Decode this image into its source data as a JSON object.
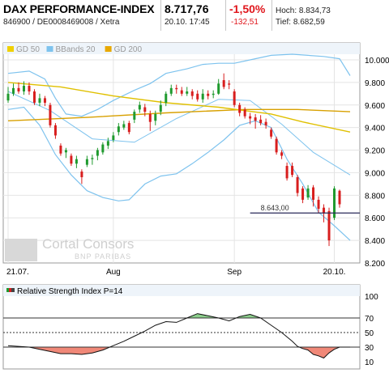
{
  "header": {
    "title": "DAX PERFORMANCE-INDEX",
    "ids": "846900 / DE0008469008 / Xetra",
    "price": "8.717,76",
    "datetime": "20.10. 17:45",
    "change_pct": "-1,50%",
    "change_abs": "-132,51",
    "high_label": "Hoch: 8.834,73",
    "low_label": "Tief: 8.682,59"
  },
  "legend": [
    {
      "label": "GD 50",
      "color": "#f0d000"
    },
    {
      "label": "BBands 20",
      "color": "#7ec3ee"
    },
    {
      "label": "GD 200",
      "color": "#e8a800"
    }
  ],
  "watermark": {
    "brand": "Cortal Consors",
    "sub": "BNP PARIBAS"
  },
  "colors": {
    "up": "#1f9a2e",
    "down": "#d81e1e",
    "bb": "#7ec3ee",
    "gd50": "#e0c000",
    "gd200": "#d8a000",
    "rsi_pos": "#8ccf8c",
    "rsi_neg": "#f08878"
  },
  "chart_data": [
    {
      "type": "line",
      "title": "DAX PERFORMANCE-INDEX",
      "x_ticks": [
        "21.07.",
        "Aug",
        "Sep",
        "20.10."
      ],
      "y_ticks": [
        8200,
        8400,
        8600,
        8800,
        9000,
        9200,
        9400,
        9600,
        9800,
        10000
      ],
      "y_tick_labels": [
        "8.200",
        "8.400",
        "8.600",
        "8.800",
        "9.000",
        "9.200",
        "9.400",
        "9.600",
        "9.800",
        "10.000"
      ],
      "ylim": [
        8200,
        10050
      ],
      "x_count": 66,
      "annotation": {
        "label": "8.643,00",
        "value": 8643
      },
      "candles": [
        {
          "x": 0,
          "o": 9640,
          "c": 9700,
          "h": 9760,
          "l": 9620
        },
        {
          "x": 1,
          "o": 9700,
          "c": 9750,
          "h": 9790,
          "l": 9680
        },
        {
          "x": 2,
          "o": 9750,
          "c": 9720,
          "h": 9800,
          "l": 9700
        },
        {
          "x": 3,
          "o": 9720,
          "c": 9770,
          "h": 9810,
          "l": 9690
        },
        {
          "x": 4,
          "o": 9770,
          "c": 9720,
          "h": 9800,
          "l": 9690
        },
        {
          "x": 5,
          "o": 9720,
          "c": 9620,
          "h": 9740,
          "l": 9600
        },
        {
          "x": 6,
          "o": 9620,
          "c": 9660,
          "h": 9700,
          "l": 9590
        },
        {
          "x": 7,
          "o": 9660,
          "c": 9620,
          "h": 9680,
          "l": 9590
        },
        {
          "x": 8,
          "o": 9600,
          "c": 9420,
          "h": 9620,
          "l": 9400
        },
        {
          "x": 9,
          "o": 9420,
          "c": 9330,
          "h": 9440,
          "l": 9300
        },
        {
          "x": 10,
          "o": 9240,
          "c": 9170,
          "h": 9260,
          "l": 9150
        },
        {
          "x": 11,
          "o": 9180,
          "c": 9200,
          "h": 9220,
          "l": 9130
        },
        {
          "x": 12,
          "o": 9150,
          "c": 9080,
          "h": 9170,
          "l": 9060
        },
        {
          "x": 13,
          "o": 9080,
          "c": 9120,
          "h": 9150,
          "l": 9040
        },
        {
          "x": 14,
          "o": 9010,
          "c": 8960,
          "h": 9030,
          "l": 8900
        },
        {
          "x": 15,
          "o": 9070,
          "c": 9120,
          "h": 9150,
          "l": 9050
        },
        {
          "x": 16,
          "o": 9120,
          "c": 9130,
          "h": 9160,
          "l": 9070
        },
        {
          "x": 17,
          "o": 9150,
          "c": 9200,
          "h": 9220,
          "l": 9110
        },
        {
          "x": 18,
          "o": 9180,
          "c": 9250,
          "h": 9270,
          "l": 9160
        },
        {
          "x": 19,
          "o": 9240,
          "c": 9280,
          "h": 9310,
          "l": 9210
        },
        {
          "x": 20,
          "o": 9290,
          "c": 9330,
          "h": 9360,
          "l": 9270
        },
        {
          "x": 21,
          "o": 9360,
          "c": 9410,
          "h": 9440,
          "l": 9330
        },
        {
          "x": 22,
          "o": 9400,
          "c": 9430,
          "h": 9460,
          "l": 9380
        },
        {
          "x": 23,
          "o": 9440,
          "c": 9360,
          "h": 9460,
          "l": 9340
        },
        {
          "x": 24,
          "o": 9470,
          "c": 9540,
          "h": 9560,
          "l": 9440
        },
        {
          "x": 25,
          "o": 9560,
          "c": 9600,
          "h": 9630,
          "l": 9530
        },
        {
          "x": 26,
          "o": 9580,
          "c": 9540,
          "h": 9610,
          "l": 9500
        },
        {
          "x": 27,
          "o": 9520,
          "c": 9450,
          "h": 9550,
          "l": 9370
        },
        {
          "x": 28,
          "o": 9460,
          "c": 9520,
          "h": 9550,
          "l": 9420
        },
        {
          "x": 29,
          "o": 9540,
          "c": 9600,
          "h": 9640,
          "l": 9510
        },
        {
          "x": 30,
          "o": 9620,
          "c": 9700,
          "h": 9720,
          "l": 9590
        },
        {
          "x": 31,
          "o": 9700,
          "c": 9750,
          "h": 9780,
          "l": 9680
        },
        {
          "x": 32,
          "o": 9750,
          "c": 9740,
          "h": 9780,
          "l": 9700
        },
        {
          "x": 33,
          "o": 9730,
          "c": 9700,
          "h": 9760,
          "l": 9680
        },
        {
          "x": 34,
          "o": 9700,
          "c": 9720,
          "h": 9760,
          "l": 9680
        },
        {
          "x": 35,
          "o": 9720,
          "c": 9680,
          "h": 9740,
          "l": 9650
        },
        {
          "x": 36,
          "o": 9700,
          "c": 9650,
          "h": 9730,
          "l": 9630
        },
        {
          "x": 37,
          "o": 9650,
          "c": 9700,
          "h": 9740,
          "l": 9620
        },
        {
          "x": 38,
          "o": 9700,
          "c": 9680,
          "h": 9730,
          "l": 9650
        },
        {
          "x": 39,
          "o": 9690,
          "c": 9700,
          "h": 9730,
          "l": 9660
        },
        {
          "x": 40,
          "o": 9700,
          "c": 9790,
          "h": 9830,
          "l": 9690
        },
        {
          "x": 41,
          "o": 9820,
          "c": 9760,
          "h": 9880,
          "l": 9740
        },
        {
          "x": 42,
          "o": 9790,
          "c": 9780,
          "h": 9820,
          "l": 9740
        },
        {
          "x": 43,
          "o": 9720,
          "c": 9600,
          "h": 9740,
          "l": 9580
        },
        {
          "x": 44,
          "o": 9600,
          "c": 9530,
          "h": 9620,
          "l": 9500
        },
        {
          "x": 45,
          "o": 9560,
          "c": 9500,
          "h": 9580,
          "l": 9480
        },
        {
          "x": 46,
          "o": 9500,
          "c": 9480,
          "h": 9530,
          "l": 9430
        },
        {
          "x": 47,
          "o": 9490,
          "c": 9460,
          "h": 9520,
          "l": 9390
        },
        {
          "x": 48,
          "o": 9470,
          "c": 9440,
          "h": 9510,
          "l": 9420
        },
        {
          "x": 49,
          "o": 9450,
          "c": 9420,
          "h": 9480,
          "l": 9390
        },
        {
          "x": 50,
          "o": 9380,
          "c": 9320,
          "h": 9400,
          "l": 9300
        },
        {
          "x": 51,
          "o": 9300,
          "c": 9180,
          "h": 9320,
          "l": 9160
        },
        {
          "x": 52,
          "o": 9180,
          "c": 9150,
          "h": 9200,
          "l": 9120
        },
        {
          "x": 53,
          "o": 9060,
          "c": 8950,
          "h": 9090,
          "l": 8930
        },
        {
          "x": 54,
          "o": 9060,
          "c": 8980,
          "h": 9090,
          "l": 8960
        },
        {
          "x": 55,
          "o": 8960,
          "c": 8820,
          "h": 8980,
          "l": 8790
        },
        {
          "x": 56,
          "o": 8860,
          "c": 8760,
          "h": 8880,
          "l": 8730
        },
        {
          "x": 57,
          "o": 8780,
          "c": 8860,
          "h": 8890,
          "l": 8760
        },
        {
          "x": 58,
          "o": 8870,
          "c": 8760,
          "h": 8890,
          "l": 8700
        },
        {
          "x": 59,
          "o": 8760,
          "c": 8680,
          "h": 8790,
          "l": 8640
        },
        {
          "x": 60,
          "o": 8690,
          "c": 8640,
          "h": 8720,
          "l": 8560
        },
        {
          "x": 61,
          "o": 8660,
          "c": 8400,
          "h": 8690,
          "l": 8350
        },
        {
          "x": 62,
          "o": 8600,
          "c": 8860,
          "h": 8880,
          "l": 8580
        },
        {
          "x": 63,
          "o": 8840,
          "c": 8720,
          "h": 8850,
          "l": 8690
        }
      ],
      "gd50": [
        [
          0,
          9800
        ],
        [
          10,
          9760
        ],
        [
          20,
          9680
        ],
        [
          30,
          9620
        ],
        [
          40,
          9580
        ],
        [
          50,
          9520
        ],
        [
          56,
          9450
        ],
        [
          65,
          9360
        ]
      ],
      "gd200": [
        [
          0,
          9460
        ],
        [
          15,
          9490
        ],
        [
          30,
          9530
        ],
        [
          45,
          9560
        ],
        [
          55,
          9560
        ],
        [
          65,
          9540
        ]
      ],
      "bb_upper": [
        [
          0,
          9880
        ],
        [
          4,
          9900
        ],
        [
          7,
          9830
        ],
        [
          9,
          9660
        ],
        [
          11,
          9520
        ],
        [
          14,
          9500
        ],
        [
          17,
          9560
        ],
        [
          20,
          9640
        ],
        [
          24,
          9730
        ],
        [
          27,
          9790
        ],
        [
          30,
          9880
        ],
        [
          34,
          9920
        ],
        [
          37,
          9960
        ],
        [
          40,
          9970
        ],
        [
          43,
          9970
        ],
        [
          46,
          10000
        ],
        [
          50,
          10040
        ],
        [
          54,
          10050
        ],
        [
          57,
          10040
        ],
        [
          60,
          10030
        ],
        [
          63,
          10010
        ],
        [
          65,
          9860
        ]
      ],
      "bb_lower": [
        [
          0,
          9560
        ],
        [
          3,
          9580
        ],
        [
          6,
          9420
        ],
        [
          9,
          9160
        ],
        [
          12,
          8980
        ],
        [
          15,
          8840
        ],
        [
          18,
          8780
        ],
        [
          21,
          8750
        ],
        [
          23,
          8760
        ],
        [
          26,
          8900
        ],
        [
          29,
          8970
        ],
        [
          32,
          8990
        ],
        [
          35,
          9080
        ],
        [
          38,
          9180
        ],
        [
          41,
          9290
        ],
        [
          44,
          9420
        ],
        [
          47,
          9460
        ],
        [
          50,
          9400
        ],
        [
          53,
          9120
        ],
        [
          56,
          8900
        ],
        [
          59,
          8650
        ],
        [
          62,
          8530
        ],
        [
          65,
          8400
        ]
      ],
      "bb_mid": [
        [
          0,
          9720
        ],
        [
          8,
          9550
        ],
        [
          16,
          9300
        ],
        [
          24,
          9270
        ],
        [
          32,
          9480
        ],
        [
          40,
          9650
        ],
        [
          46,
          9640
        ],
        [
          52,
          9430
        ],
        [
          58,
          9180
        ],
        [
          65,
          8980
        ]
      ]
    },
    {
      "type": "line",
      "title": "Relative Strength Index P=14",
      "y_ticks": [
        10,
        30,
        50,
        70,
        100
      ],
      "ylim": [
        0,
        100
      ],
      "reference_lines": [
        30,
        50,
        70
      ],
      "x_count": 66,
      "values": [
        [
          0,
          32
        ],
        [
          2,
          31
        ],
        [
          4,
          30
        ],
        [
          6,
          27
        ],
        [
          8,
          24
        ],
        [
          10,
          21
        ],
        [
          12,
          21
        ],
        [
          14,
          20
        ],
        [
          16,
          22
        ],
        [
          18,
          26
        ],
        [
          20,
          32
        ],
        [
          22,
          38
        ],
        [
          24,
          45
        ],
        [
          26,
          52
        ],
        [
          28,
          60
        ],
        [
          30,
          65
        ],
        [
          32,
          64
        ],
        [
          34,
          70
        ],
        [
          36,
          76
        ],
        [
          38,
          73
        ],
        [
          40,
          70
        ],
        [
          42,
          66
        ],
        [
          44,
          72
        ],
        [
          46,
          75
        ],
        [
          48,
          70
        ],
        [
          50,
          60
        ],
        [
          52,
          50
        ],
        [
          54,
          38
        ],
        [
          55,
          31
        ],
        [
          56,
          28
        ],
        [
          57,
          26
        ],
        [
          58,
          20
        ],
        [
          59,
          18
        ],
        [
          60,
          15
        ],
        [
          61,
          22
        ],
        [
          62,
          27
        ],
        [
          63,
          30
        ],
        [
          65,
          30
        ]
      ]
    }
  ]
}
